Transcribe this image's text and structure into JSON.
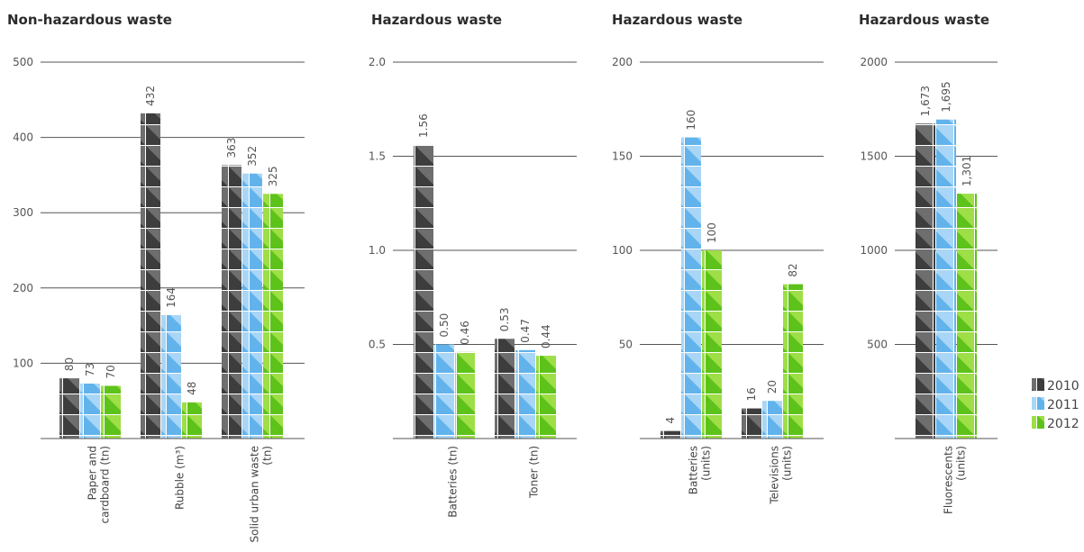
{
  "colors": {
    "2010": {
      "dark": "#3d3d3d",
      "light": "#6e6e6e"
    },
    "2011": {
      "dark": "#62b3ec",
      "light": "#a9d6f6"
    },
    "2012": {
      "dark": "#5dc21a",
      "light": "#9ede47"
    }
  },
  "legend": [
    "2010",
    "2011",
    "2012"
  ],
  "chart_data": [
    {
      "type": "bar",
      "title": "Non-hazardous waste",
      "ylim": [
        0,
        500
      ],
      "yticks": [
        "100",
        "200",
        "300",
        "400",
        "500"
      ],
      "ytick_values": [
        100,
        200,
        300,
        400,
        500
      ],
      "categories": [
        [
          "Paper and",
          "cardboard (tn)"
        ],
        [
          "Rubble (m³)"
        ],
        [
          "Solid urban waste",
          "(tn)"
        ]
      ],
      "series": [
        {
          "name": "2010",
          "values": [
            80,
            432,
            363
          ],
          "labels": [
            "80",
            "432",
            "363"
          ]
        },
        {
          "name": "2011",
          "values": [
            73,
            164,
            352
          ],
          "labels": [
            "73",
            "164",
            "352"
          ]
        },
        {
          "name": "2012",
          "values": [
            70,
            48,
            325
          ],
          "labels": [
            "70",
            "48",
            "325"
          ]
        }
      ]
    },
    {
      "type": "bar",
      "title": "Hazardous waste",
      "ylim": [
        0,
        2.0
      ],
      "yticks": [
        "0.5",
        "1.0",
        "1.5",
        "2.0"
      ],
      "ytick_values": [
        0.5,
        1.0,
        1.5,
        2.0
      ],
      "categories": [
        [
          "Batteries (tn)"
        ],
        [
          "Toner (tn)"
        ]
      ],
      "series": [
        {
          "name": "2010",
          "values": [
            1.56,
            0.53
          ],
          "labels": [
            "1.56",
            "0.53"
          ]
        },
        {
          "name": "2011",
          "values": [
            0.5,
            0.47
          ],
          "labels": [
            "0.50",
            "0.47"
          ]
        },
        {
          "name": "2012",
          "values": [
            0.46,
            0.44
          ],
          "labels": [
            "0.46",
            "0.44"
          ]
        }
      ]
    },
    {
      "type": "bar",
      "title": "Hazardous waste",
      "ylim": [
        0,
        200
      ],
      "yticks": [
        "50",
        "100",
        "150",
        "200"
      ],
      "ytick_values": [
        50,
        100,
        150,
        200
      ],
      "categories": [
        [
          "Batteries",
          "(units)"
        ],
        [
          "Televisions",
          "(units)"
        ]
      ],
      "series": [
        {
          "name": "2010",
          "values": [
            4,
            16
          ],
          "labels": [
            "4",
            "16"
          ]
        },
        {
          "name": "2011",
          "values": [
            160,
            20
          ],
          "labels": [
            "160",
            "20"
          ]
        },
        {
          "name": "2012",
          "values": [
            100,
            82
          ],
          "labels": [
            "100",
            "82"
          ]
        }
      ]
    },
    {
      "type": "bar",
      "title": "Hazardous waste",
      "ylim": [
        0,
        2000
      ],
      "yticks": [
        "500",
        "1000",
        "1500",
        "2000"
      ],
      "ytick_values": [
        500,
        1000,
        1500,
        2000
      ],
      "categories": [
        [
          "Fluorescents",
          "(units)"
        ]
      ],
      "series": [
        {
          "name": "2010",
          "values": [
            1673
          ],
          "labels": [
            "1,673"
          ]
        },
        {
          "name": "2011",
          "values": [
            1695
          ],
          "labels": [
            "1,695"
          ]
        },
        {
          "name": "2012",
          "values": [
            1301
          ],
          "labels": [
            "1,301"
          ]
        }
      ]
    }
  ]
}
